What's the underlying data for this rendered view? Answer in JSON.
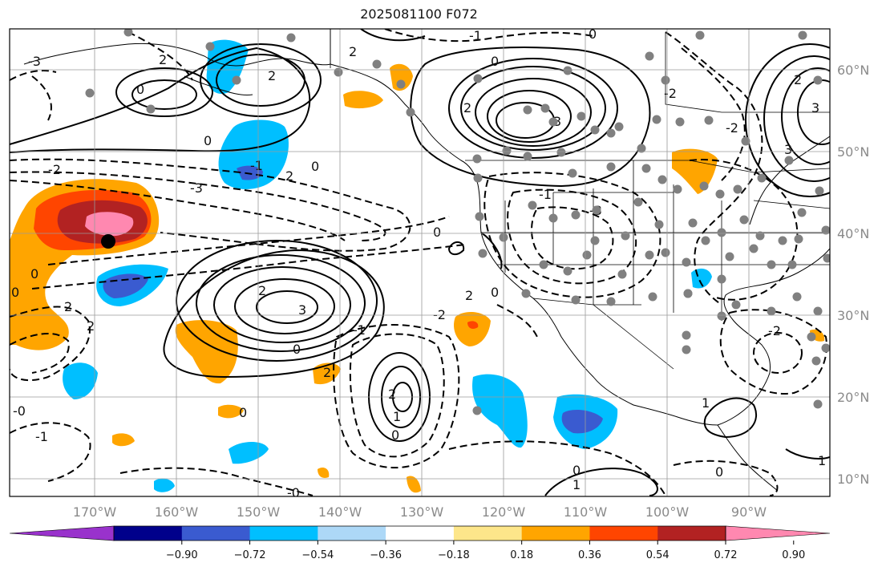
{
  "title": "2025081100 F072",
  "lat_labels": [
    "60°N",
    "50°N",
    "40°N",
    "30°N",
    "20°N",
    "10°N"
  ],
  "lon_labels": [
    "170°W",
    "160°W",
    "150°W",
    "140°W",
    "130°W",
    "120°W",
    "110°W",
    "100°W",
    "90°W"
  ],
  "colorbar": {
    "ticks": [
      "−0.90",
      "−0.72",
      "−0.54",
      "−0.36",
      "−0.18",
      "0.18",
      "0.36",
      "0.54",
      "0.72",
      "0.90"
    ],
    "colors": [
      "#9932cc",
      "#00008b",
      "#3a5bd0",
      "#00bfff",
      "#add8f7",
      "#ffffff",
      "#fde68a",
      "#ffa500",
      "#ff4500",
      "#b22222",
      "#ff88b0"
    ]
  },
  "contour_labels": [
    "3",
    "2",
    "0",
    "-1",
    "-2",
    "-3",
    "1",
    "-0"
  ],
  "marker_color": "#808080"
}
